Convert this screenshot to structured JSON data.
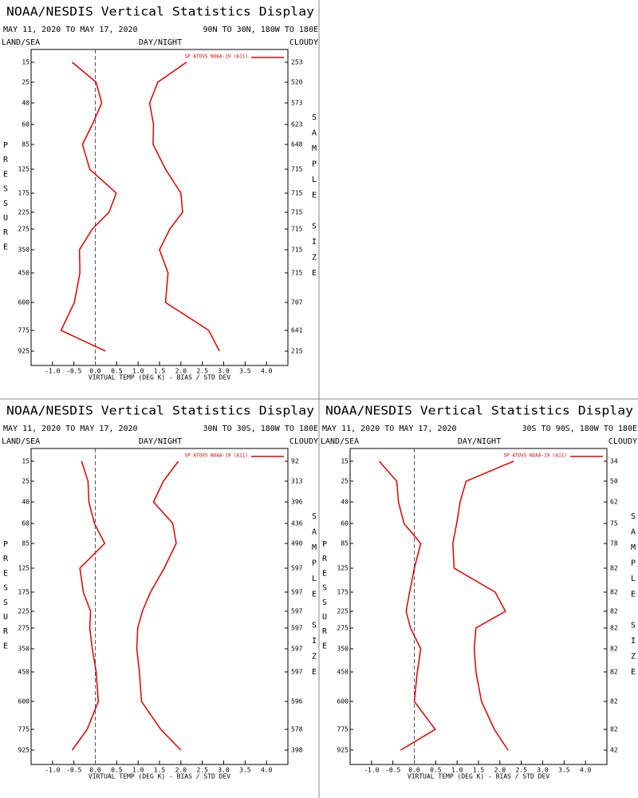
{
  "chart_data": [
    {
      "type": "line",
      "title": "NOAA/NESDIS Vertical Statistics Display",
      "subtitle": "MAY 11, 2020 TO MAY 17, 2020",
      "region": "90N TO 30N, 180W TO 180E",
      "land_sea": "LAND/SEA",
      "day_night": "DAY/NIGHT",
      "cloud": "CLOUDY",
      "y_label": "PRESSURE",
      "y2_label": "SAMPLE SIZE",
      "x_label": "VIRTUAL TEMP (DEG K) - BIAS / STD DEV",
      "categories": [
        "15",
        "25",
        "40",
        "60",
        "85",
        "125",
        "175",
        "225",
        "275",
        "350",
        "450",
        "600",
        "775",
        "925"
      ],
      "series": [
        {
          "name": "SP ATOVS NOAA-19 (A11)",
          "color": "#dd0000",
          "bias": [
            -0.54,
            0.02,
            0.15,
            -0.07,
            -0.3,
            -0.13,
            0.49,
            0.32,
            -0.07,
            -0.37,
            -0.36,
            -0.49,
            -0.8,
            0.24
          ],
          "std_dev": [
            2.13,
            1.46,
            1.27,
            1.36,
            1.35,
            1.64,
            2.0,
            2.04,
            1.74,
            1.5,
            1.7,
            1.64,
            2.65,
            2.9
          ]
        }
      ],
      "sample_sizes": [
        253,
        520,
        573,
        623,
        648,
        715,
        715,
        715,
        715,
        715,
        715,
        707,
        641,
        215
      ],
      "xlim": [
        -1.5,
        4.5
      ],
      "xticks": [
        {
          "value": -1,
          "label": "-1.0"
        },
        {
          "value": -0.5,
          "label": "-0.5"
        },
        {
          "value": 0,
          "label": "0.0"
        },
        {
          "value": 0.5,
          "label": "0.5"
        },
        {
          "value": 1,
          "label": "1.0"
        },
        {
          "value": 1.5,
          "label": "1.5"
        },
        {
          "value": 2,
          "label": "2.0"
        },
        {
          "value": 2.5,
          "label": "2.5"
        },
        {
          "value": 3,
          "label": "3.0"
        },
        {
          "value": 3.5,
          "label": "3.5"
        },
        {
          "value": 4,
          "label": "4.0"
        }
      ]
    },
    {
      "type": "line",
      "title": "NOAA/NESDIS Vertical Statistics Display",
      "subtitle": "MAY 11, 2020 TO MAY 17, 2020",
      "region": "30N TO 30S, 180W TO 180E",
      "land_sea": "LAND/SEA",
      "day_night": "DAY/NIGHT",
      "cloud": "CLOUDY",
      "y_label": "PRESSURE",
      "y2_label": "SAMPLE SIZE",
      "x_label": "VIRTUAL TEMP (DEG K) - BIAS / STD DEV",
      "categories": [
        "15",
        "25",
        "40",
        "60",
        "85",
        "125",
        "175",
        "225",
        "275",
        "350",
        "450",
        "600",
        "775",
        "925"
      ],
      "series": [
        {
          "name": "SP ATOVS NOAA-19 (A11)",
          "color": "#dd0000",
          "bias": [
            -0.32,
            -0.17,
            -0.15,
            -0.02,
            0.22,
            -0.36,
            -0.28,
            -0.11,
            -0.13,
            -0.07,
            0.02,
            0.07,
            -0.19,
            -0.54
          ],
          "std_dev": [
            1.94,
            1.59,
            1.36,
            1.81,
            1.89,
            1.61,
            1.29,
            1.1,
            0.99,
            0.97,
            1.03,
            1.08,
            1.53,
            2.0
          ]
        }
      ],
      "sample_sizes": [
        92,
        313,
        396,
        436,
        490,
        597,
        597,
        597,
        597,
        597,
        597,
        596,
        578,
        398
      ],
      "xlim": [
        -1.5,
        4.5
      ],
      "xticks": [
        {
          "value": -1,
          "label": "-1.0"
        },
        {
          "value": -0.5,
          "label": "-0.5"
        },
        {
          "value": 0,
          "label": "0.0"
        },
        {
          "value": 0.5,
          "label": "0.5"
        },
        {
          "value": 1,
          "label": "1.0"
        },
        {
          "value": 1.5,
          "label": "1.5"
        },
        {
          "value": 2,
          "label": "2.0"
        },
        {
          "value": 2.5,
          "label": "2.5"
        },
        {
          "value": 3,
          "label": "3.0"
        },
        {
          "value": 3.5,
          "label": "3.5"
        },
        {
          "value": 4,
          "label": "4.0"
        }
      ]
    },
    {
      "type": "line",
      "title": "NOAA/NESDIS Vertical Statistics Display",
      "subtitle": "MAY 11, 2020 TO MAY 17, 2020",
      "region": "30S TO 90S, 180W TO 180E",
      "land_sea": "LAND/SEA",
      "day_night": "DAY/NIGHT",
      "cloud": "CLOUDY",
      "y_label": "PRESSURE",
      "y2_label": "SAMPLE SIZE",
      "x_label": "VIRTUAL TEMP (DEG K) - BIAS / STD DEV",
      "categories": [
        "15",
        "25",
        "40",
        "60",
        "85",
        "125",
        "175",
        "225",
        "275",
        "350",
        "450",
        "600",
        "775",
        "925"
      ],
      "series": [
        {
          "name": "SP ATOVS NOAA-19 (A11)",
          "color": "#dd0000",
          "bias": [
            -0.82,
            -0.41,
            -0.37,
            -0.24,
            0.15,
            0.0,
            -0.11,
            -0.19,
            -0.09,
            0.15,
            0.07,
            0.0,
            0.49,
            -0.32
          ],
          "std_dev": [
            2.32,
            1.21,
            1.07,
            0.99,
            0.9,
            0.93,
            1.89,
            2.13,
            1.44,
            1.4,
            1.44,
            1.57,
            1.87,
            2.19
          ]
        }
      ],
      "sample_sizes": [
        34,
        50,
        62,
        75,
        78,
        82,
        82,
        82,
        82,
        82,
        82,
        82,
        82,
        42
      ],
      "xlim": [
        -1.5,
        4.5
      ],
      "xticks": [
        {
          "value": -1,
          "label": "-1.0"
        },
        {
          "value": -0.5,
          "label": "-0.5"
        },
        {
          "value": 0,
          "label": "0.0"
        },
        {
          "value": 0.5,
          "label": "0.5"
        },
        {
          "value": 1,
          "label": "1.0"
        },
        {
          "value": 1.5,
          "label": "1.5"
        },
        {
          "value": 2,
          "label": "2.0"
        },
        {
          "value": 2.5,
          "label": "2.5"
        },
        {
          "value": 3,
          "label": "3.0"
        },
        {
          "value": 3.5,
          "label": "3.5"
        },
        {
          "value": 4,
          "label": "4.0"
        }
      ]
    }
  ]
}
